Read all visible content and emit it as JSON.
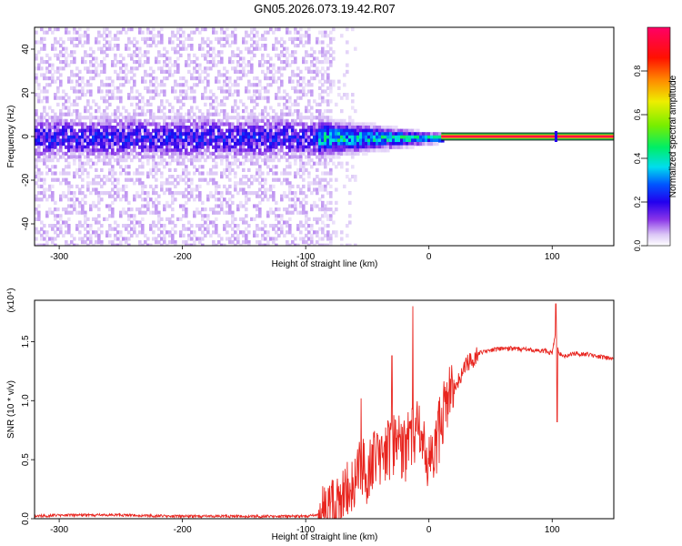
{
  "title": "GN05.2026.073.19.42.R07",
  "chart_data": [
    {
      "type": "heatmap",
      "title": "",
      "xlabel": "Height of straight line (km)",
      "ylabel": "Frequency (Hz)",
      "xlim": [
        -320,
        150
      ],
      "ylim": [
        -50,
        50
      ],
      "xticks": [
        -300,
        -200,
        -100,
        0,
        100
      ],
      "yticks": [
        -40,
        -20,
        0,
        20,
        40
      ],
      "colorbar": {
        "label": "Normalized spectral amplitude",
        "range": [
          0,
          1
        ],
        "ticks": [
          "0.0",
          "0.2",
          "0.4",
          "0.6",
          "0.8"
        ],
        "tick_values": [
          0,
          0.2,
          0.4,
          0.6,
          0.8
        ]
      },
      "features": [
        {
          "name": "broadband noise",
          "x_range": [
            -320,
            -80
          ],
          "freq_spread_hz": 50,
          "amplitude": 0.05
        },
        {
          "name": "central band",
          "x_range": [
            -320,
            -80
          ],
          "freq_spread_hz": 8,
          "amplitude": 0.18
        },
        {
          "name": "emerging carrier",
          "x_range": [
            -90,
            10
          ],
          "freq_spread_hz": 6,
          "amplitude": 0.35
        },
        {
          "name": "steady carrier",
          "x_range": [
            10,
            150
          ],
          "frequency_hz": 0,
          "amplitude": 1.0
        }
      ]
    },
    {
      "type": "line",
      "xlabel": "Height of straight line (km)",
      "ylabel": "SNR (10 * v/v)",
      "yscale_label": "(x10⁴)",
      "xlim": [
        -320,
        150
      ],
      "ylim": [
        0,
        1.85
      ],
      "xticks": [
        -300,
        -200,
        -100,
        0,
        100
      ],
      "yticks": [
        0,
        0.5,
        1.0,
        1.5
      ],
      "ytick_labels": [
        "0.0",
        "0.5",
        "1.0",
        "1.5"
      ],
      "series": [
        {
          "name": "SNR",
          "color": "#e8251f",
          "x": [
            -320,
            -300,
            -250,
            -200,
            -150,
            -120,
            -100,
            -90,
            -80,
            -75,
            -70,
            -65,
            -60,
            -55,
            -50,
            -45,
            -40,
            -35,
            -30,
            -25,
            -20,
            -15,
            -10,
            -5,
            0,
            5,
            10,
            15,
            20,
            25,
            30,
            35,
            40,
            50,
            60,
            70,
            80,
            90,
            95,
            100,
            103,
            105,
            110,
            120,
            130,
            140,
            150
          ],
          "y": [
            0.02,
            0.03,
            0.03,
            0.02,
            0.02,
            0.02,
            0.02,
            0.03,
            0.05,
            0.08,
            0.15,
            0.25,
            0.35,
            0.45,
            0.4,
            0.5,
            0.55,
            0.6,
            0.6,
            0.65,
            0.55,
            0.7,
            0.75,
            0.6,
            0.45,
            0.55,
            0.85,
            1.0,
            1.1,
            1.2,
            1.3,
            1.35,
            1.4,
            1.43,
            1.44,
            1.44,
            1.43,
            1.42,
            1.42,
            1.4,
            1.6,
            1.4,
            1.38,
            1.4,
            1.39,
            1.37,
            1.35
          ],
          "spikes": [
            {
              "x": -55,
              "y": 1.02
            },
            {
              "x": -30,
              "y": 1.38
            },
            {
              "x": -13,
              "y": 1.8
            },
            {
              "x": 103,
              "y": 1.82
            },
            {
              "x": 104,
              "y": 0.82
            }
          ]
        }
      ]
    }
  ]
}
